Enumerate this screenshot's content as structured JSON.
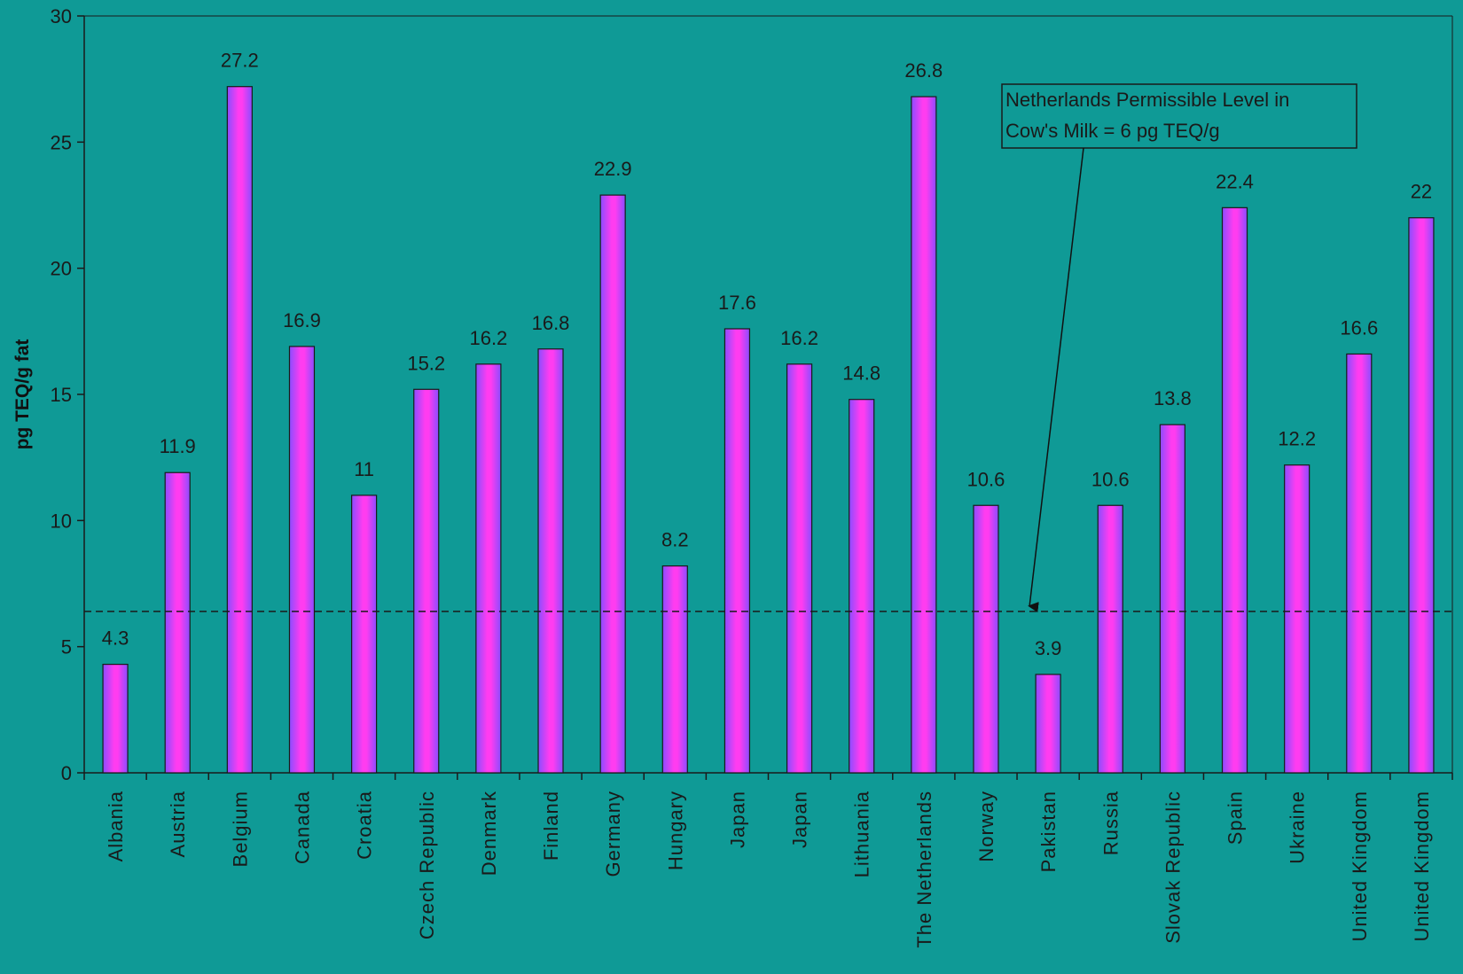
{
  "chart_data": {
    "type": "bar",
    "title": "",
    "xlabel": "",
    "ylabel": "pg TEQ/g fat",
    "ylim": [
      0,
      30
    ],
    "yticks": [
      0,
      5,
      10,
      15,
      20,
      25,
      30
    ],
    "grid": false,
    "categories": [
      "Albania",
      "Austria",
      "Belgium",
      "Canada",
      "Croatia",
      "Czech Republic",
      "Denmark",
      "Finland",
      "Germany",
      "Hungary",
      "Japan",
      "Japan",
      "Lithuania",
      "The Netherlands",
      "Norway",
      "Pakistan",
      "Russia",
      "Slovak Republic",
      "Spain",
      "Ukraine",
      "United Kingdom",
      "United Kingdom"
    ],
    "values": [
      4.3,
      11.9,
      27.2,
      16.9,
      11,
      15.2,
      16.2,
      16.8,
      22.9,
      8.2,
      17.6,
      16.2,
      14.8,
      26.8,
      10.6,
      3.9,
      10.6,
      13.8,
      22.4,
      12.2,
      16.6,
      22
    ],
    "value_labels": [
      "4.3",
      "11.9",
      "27.2",
      "16.9",
      "11",
      "15.2",
      "16.2",
      "16.8",
      "22.9",
      "8.2",
      "17.6",
      "16.2",
      "14.8",
      "26.8",
      "10.6",
      "3.9",
      "10.6",
      "13.8",
      "22.4",
      "12.2",
      "16.6",
      "22"
    ],
    "reference_line": {
      "value": 6.4,
      "style": "dashed"
    },
    "annotation": {
      "lines": [
        "Netherlands Permissible Level  in",
        "Cow's Milk = 6 pg TEQ/g"
      ],
      "arrow_target_category_index": 15
    },
    "colors": {
      "background": "#0f9a96",
      "bar_center": "#ff3cf0",
      "bar_edge": "#8a4cff",
      "axis": "#1a1a1a"
    }
  }
}
